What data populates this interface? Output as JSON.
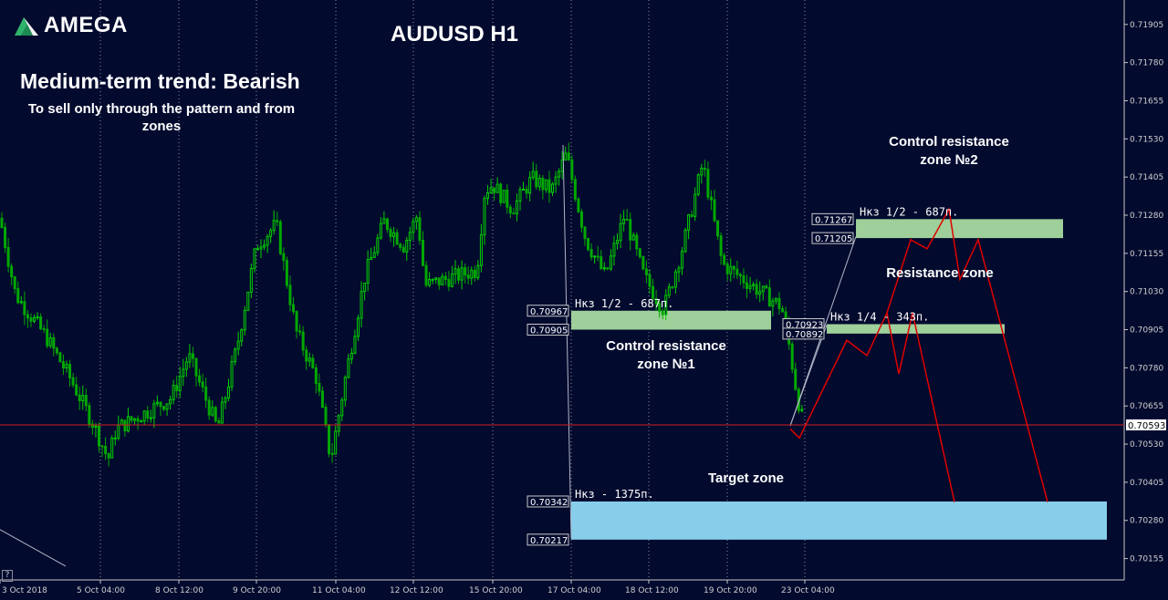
{
  "brand": {
    "name": "AMEGA"
  },
  "chart_title": "AUDUSD H1",
  "trend_text": "Medium-term trend: Bearish",
  "note_text": "To sell only through the pattern and from zones",
  "colors": {
    "background": "#020a2e",
    "bull_candle": "#00d000",
    "bear_candle": "#00a800",
    "current_price_line": "#d42020",
    "forecast_line": "#e00000",
    "resistance_zone": "#9fcf9a",
    "target_zone": "#87ceeb"
  },
  "chart_data": {
    "type": "candlestick",
    "symbol": "AUDUSD",
    "timeframe": "H1",
    "ylim": [
      0.70085,
      0.71985
    ],
    "x_range": [
      "3 Oct 2018",
      "24 Oct 2018 20:00"
    ],
    "y_ticks": [
      "0.71905",
      "0.71780",
      "0.71655",
      "0.71530",
      "0.71405",
      "0.71280",
      "0.71155",
      "0.71030",
      "0.70905",
      "0.70780",
      "0.70655",
      "0.70530",
      "0.70405",
      "0.70280",
      "0.70155"
    ],
    "x_ticks": [
      "3 Oct 2018",
      "5 Oct 04:00",
      "8 Oct 12:00",
      "9 Oct 20:00",
      "11 Oct 04:00",
      "12 Oct 12:00",
      "15 Oct 20:00",
      "17 Oct 04:00",
      "18 Oct 12:00",
      "19 Oct 20:00",
      "23 Oct 04:00"
    ],
    "grid": "vertical dotted",
    "current_price": "0.70593",
    "price_path": [
      [
        "3 Oct 00:00",
        0.7127
      ],
      [
        "3 Oct 08:00",
        0.7102
      ],
      [
        "4 Oct 00:00",
        0.7088
      ],
      [
        "4 Oct 12:00",
        0.7075
      ],
      [
        "5 Oct 00:00",
        0.706
      ],
      [
        "5 Oct 12:00",
        0.7048
      ],
      [
        "5 Oct 20:00",
        0.7058
      ],
      [
        "8 Oct 04:00",
        0.7068
      ],
      [
        "8 Oct 16:00",
        0.7082
      ],
      [
        "9 Oct 04:00",
        0.7058
      ],
      [
        "9 Oct 12:00",
        0.7085
      ],
      [
        "9 Oct 20:00",
        0.7118
      ],
      [
        "10 Oct 04:00",
        0.7125
      ],
      [
        "10 Oct 12:00",
        0.709
      ],
      [
        "10 Oct 20:00",
        0.7075
      ],
      [
        "11 Oct 02:00",
        0.7048
      ],
      [
        "11 Oct 08:00",
        0.7075
      ],
      [
        "11 Oct 16:00",
        0.7108
      ],
      [
        "12 Oct 00:00",
        0.7126
      ],
      [
        "12 Oct 08:00",
        0.7118
      ],
      [
        "12 Oct 16:00",
        0.7128
      ],
      [
        "13 Oct 00:00",
        0.7105
      ],
      [
        "15 Oct 04:00",
        0.711
      ],
      [
        "15 Oct 12:00",
        0.7136
      ],
      [
        "15 Oct 20:00",
        0.7138
      ],
      [
        "16 Oct 04:00",
        0.713
      ],
      [
        "16 Oct 12:00",
        0.714
      ],
      [
        "16 Oct 20:00",
        0.7136
      ],
      [
        "17 Oct 02:00",
        0.7148
      ],
      [
        "17 Oct 10:00",
        0.712
      ],
      [
        "17 Oct 18:00",
        0.7108
      ],
      [
        "18 Oct 02:00",
        0.7128
      ],
      [
        "18 Oct 10:00",
        0.7108
      ],
      [
        "18 Oct 18:00",
        0.7097
      ],
      [
        "19 Oct 02:00",
        0.7118
      ],
      [
        "19 Oct 10:00",
        0.7145
      ],
      [
        "19 Oct 18:00",
        0.7112
      ],
      [
        "22 Oct 04:00",
        0.7098
      ],
      [
        "22 Oct 12:00",
        0.7085
      ],
      [
        "22 Oct 20:00",
        0.7069
      ],
      [
        "23 Oct 03:00",
        0.7059
      ]
    ],
    "forecast": [
      [
        "23 Oct 03:00",
        0.7058
      ],
      [
        "23 Oct 05:00",
        0.7055
      ],
      [
        "23 Oct 19:00",
        0.7087
      ],
      [
        "24 Oct 00:00",
        0.7082
      ],
      [
        "24 Oct 02:00",
        0.7096
      ],
      [
        "24 Oct 03:30",
        0.7076
      ],
      [
        "24 Oct 06:00",
        0.7096
      ],
      [
        "24 Oct 12:00",
        0.7034
      ],
      [
        "24 Oct 17:00",
        0.7114
      ],
      [
        "24 Oct 04:30",
        0.712
      ],
      [
        "24 Oct 06:00",
        0.7117
      ],
      [
        "24 Oct 09:00",
        0.713
      ],
      [
        "24 Oct 11:00",
        0.7107
      ],
      [
        "24 Oct 13:00",
        0.712
      ],
      [
        "24 Oct 17:00",
        0.7034
      ]
    ],
    "zones": [
      {
        "name": "zone-1",
        "low": 0.70905,
        "high": 0.70967,
        "label": "Control resistance zone №1",
        "label_lines": [
          "Control resistance",
          "zone №1"
        ],
        "annotation": "Нкз 1/2 - 687п.",
        "price_labels": [
          "0.70967",
          "0.70905"
        ]
      },
      {
        "name": "zone-2",
        "low": 0.70892,
        "high": 0.70923,
        "label": "Resistance zone",
        "label_lines": [
          "Resistance zone"
        ],
        "annotation": "Нкз 1/4 - 343п.",
        "price_labels": [
          "0.70923",
          "0.70892"
        ]
      },
      {
        "name": "zone-3",
        "low": 0.71205,
        "high": 0.71267,
        "label": "Control resistance zone №2",
        "label_lines": [
          "Control resistance",
          "zone №2"
        ],
        "annotation": "Нкз 1/2 - 687п.",
        "price_labels": [
          "0.71267",
          "0.71205"
        ]
      },
      {
        "name": "target-zone",
        "low": 0.70217,
        "high": 0.70342,
        "label": "Target zone",
        "label_lines": [
          "Target zone"
        ],
        "annotation": "Нкз - 1375п.",
        "price_labels": [
          "0.70342",
          "0.70217"
        ]
      }
    ]
  }
}
